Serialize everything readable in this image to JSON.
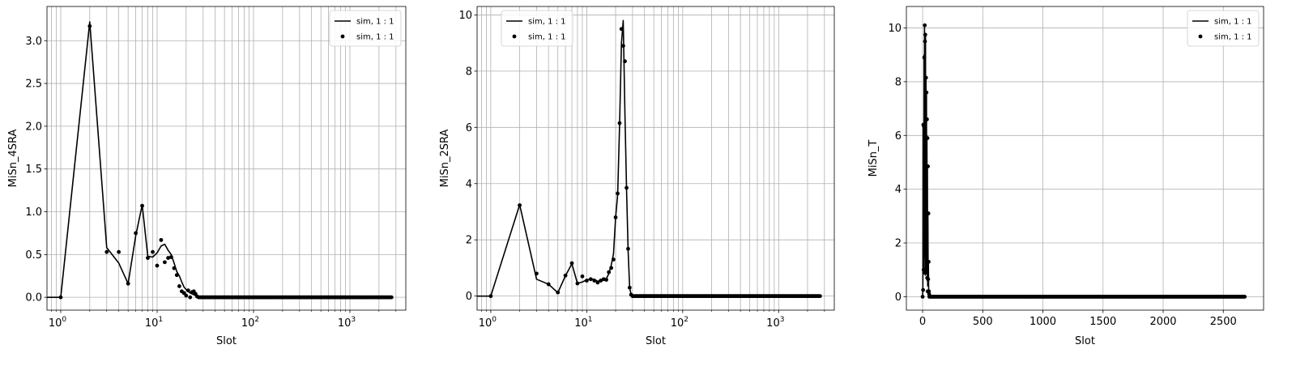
{
  "chart_data": [
    {
      "type": "line",
      "xscale": "log",
      "xlabel": "Slot",
      "ylabel": "MiSn_4SRA",
      "xlim": [
        0.72,
        3800
      ],
      "ylim": [
        -0.15,
        3.4
      ],
      "xtick_labels": [
        {
          "base": "10",
          "exp": "0",
          "value": 1
        },
        {
          "base": "10",
          "exp": "1",
          "value": 10
        },
        {
          "base": "10",
          "exp": "2",
          "value": 100
        },
        {
          "base": "10",
          "exp": "3",
          "value": 1000
        }
      ],
      "ytick_labels": [
        "0.0",
        "0.5",
        "1.0",
        "1.5",
        "2.0",
        "2.5",
        "3.0"
      ],
      "ytick_values": [
        0,
        0.5,
        1.0,
        1.5,
        2.0,
        2.5,
        3.0
      ],
      "grid": true,
      "legend_position": "upper right",
      "series": [
        {
          "name": "sim, 1 : 1",
          "style": "line",
          "x": [
            0.7,
            1,
            2,
            3,
            4,
            5,
            6,
            7,
            8,
            9,
            10,
            11,
            12,
            13,
            14,
            15,
            16,
            17,
            18,
            19,
            20,
            21,
            22,
            23,
            24,
            25,
            26,
            27,
            28,
            30,
            100,
            1000,
            2700
          ],
          "y": [
            0,
            0,
            3.22,
            0.58,
            0.4,
            0.16,
            0.72,
            1.08,
            0.48,
            0.47,
            0.52,
            0.6,
            0.62,
            0.55,
            0.5,
            0.4,
            0.3,
            0.25,
            0.18,
            0.12,
            0.09,
            0.07,
            0.05,
            0.04,
            0.03,
            0.02,
            0.01,
            0.005,
            0,
            0,
            0,
            0,
            0
          ]
        },
        {
          "name": "sim, 1 : 1",
          "style": "markers",
          "x": [
            1,
            2,
            3,
            4,
            5,
            6,
            7,
            8,
            9,
            10,
            11,
            12,
            13,
            14,
            15,
            16,
            17,
            18,
            19,
            20,
            21,
            22,
            23,
            24,
            25,
            26,
            27
          ],
          "y": [
            0,
            3.17,
            0.53,
            0.53,
            0.16,
            0.75,
            1.07,
            0.46,
            0.53,
            0.37,
            0.67,
            0.41,
            0.46,
            0.47,
            0.34,
            0.26,
            0.13,
            0.07,
            0.05,
            0.02,
            0.08,
            0.0,
            0.06,
            0.07,
            0.04,
            0.01,
            0.0
          ],
          "dense_zero_range": [
            28,
            2700
          ]
        }
      ]
    },
    {
      "type": "line",
      "xscale": "log",
      "xlabel": "Slot",
      "ylabel": "MiSn_2SRA",
      "xlim": [
        0.72,
        3800
      ],
      "ylim": [
        -0.5,
        10.3
      ],
      "xtick_labels": [
        {
          "base": "10",
          "exp": "0",
          "value": 1
        },
        {
          "base": "10",
          "exp": "1",
          "value": 10
        },
        {
          "base": "10",
          "exp": "2",
          "value": 100
        },
        {
          "base": "10",
          "exp": "3",
          "value": 1000
        }
      ],
      "ytick_labels": [
        "0",
        "2",
        "4",
        "6",
        "8",
        "10"
      ],
      "ytick_values": [
        0,
        2,
        4,
        6,
        8,
        10
      ],
      "grid": true,
      "legend_position": "upper left",
      "series": [
        {
          "name": "sim, 1 : 1",
          "style": "line",
          "x": [
            0.7,
            1,
            2,
            3,
            4,
            5,
            6,
            7,
            8,
            9,
            10,
            11,
            12,
            13,
            14,
            15,
            16,
            17,
            18,
            19,
            20,
            21,
            22,
            23,
            24,
            25,
            26,
            27,
            28,
            29,
            30,
            100,
            1000,
            2700
          ],
          "y": [
            0,
            0,
            3.25,
            0.6,
            0.42,
            0.12,
            0.72,
            1.15,
            0.45,
            0.5,
            0.58,
            0.6,
            0.6,
            0.52,
            0.58,
            0.6,
            0.62,
            0.8,
            1.1,
            1.5,
            2.8,
            3.6,
            6.1,
            9.0,
            9.8,
            6.5,
            3.8,
            1.6,
            0.3,
            0.05,
            0,
            0,
            0,
            0
          ]
        },
        {
          "name": "sim, 1 : 1",
          "style": "markers",
          "x": [
            1,
            2,
            3,
            4,
            5,
            6,
            7,
            8,
            9,
            10,
            11,
            12,
            13,
            14,
            15,
            16,
            17,
            18,
            19,
            20,
            21,
            22,
            23,
            24,
            25,
            26,
            27,
            28,
            29
          ],
          "y": [
            0,
            3.23,
            0.8,
            0.42,
            0.13,
            0.73,
            1.17,
            0.45,
            0.7,
            0.55,
            0.6,
            0.55,
            0.48,
            0.55,
            0.6,
            0.58,
            0.85,
            1.0,
            1.3,
            2.8,
            3.65,
            6.15,
            9.5,
            8.9,
            8.35,
            3.85,
            1.68,
            0.3,
            0.05
          ],
          "dense_zero_range": [
            30,
            2700
          ]
        }
      ]
    },
    {
      "type": "line",
      "xscale": "linear",
      "xlabel": "Slot",
      "ylabel": "MiSn_T",
      "xlim": [
        -135,
        2835
      ],
      "ylim": [
        -0.5,
        10.8
      ],
      "xtick_labels": [
        "0",
        "500",
        "1000",
        "1500",
        "2000",
        "2500"
      ],
      "xtick_values": [
        0,
        500,
        1000,
        1500,
        2000,
        2500
      ],
      "ytick_labels": [
        "0",
        "2",
        "4",
        "6",
        "8",
        "10"
      ],
      "ytick_values": [
        0,
        2,
        4,
        6,
        8,
        10
      ],
      "grid": true,
      "legend_position": "upper right",
      "series": [
        {
          "name": "sim, 1 : 1",
          "style": "line",
          "x": [
            0,
            2,
            4,
            6,
            8,
            10,
            12,
            14,
            16,
            18,
            20,
            22,
            24,
            26,
            28,
            30,
            32,
            34,
            36,
            38,
            40,
            42,
            44,
            46,
            48,
            50,
            52,
            54,
            56,
            60,
            80,
            2680
          ],
          "y": [
            0,
            0.3,
            6.4,
            1.0,
            6.3,
            0.9,
            9.0,
            1.5,
            10.1,
            2.0,
            9.7,
            0.8,
            9.8,
            1.2,
            8.1,
            0.9,
            7.6,
            1.0,
            6.0,
            0.6,
            4.8,
            0.4,
            3.1,
            0.7,
            1.3,
            0.3,
            0.2,
            0.1,
            0,
            0,
            0,
            0
          ]
        },
        {
          "name": "sim, 1 : 1",
          "style": "markers",
          "x": [
            0,
            4,
            6,
            8,
            10,
            12,
            14,
            16,
            18,
            20,
            22,
            24,
            26,
            28,
            30,
            32,
            34,
            36,
            38,
            40,
            42,
            44,
            46,
            48,
            50,
            52,
            54
          ],
          "y": [
            0,
            0.25,
            6.4,
            1.0,
            6.35,
            0.9,
            8.9,
            1.5,
            10.1,
            9.5,
            9.75,
            4.7,
            3.1,
            8.15,
            2.2,
            7.6,
            0.9,
            6.6,
            0.7,
            5.9,
            0.2,
            4.85,
            0.65,
            3.1,
            1.3,
            0.2,
            0.1
          ],
          "dense_zero_range": [
            56,
            2680
          ]
        }
      ]
    }
  ]
}
